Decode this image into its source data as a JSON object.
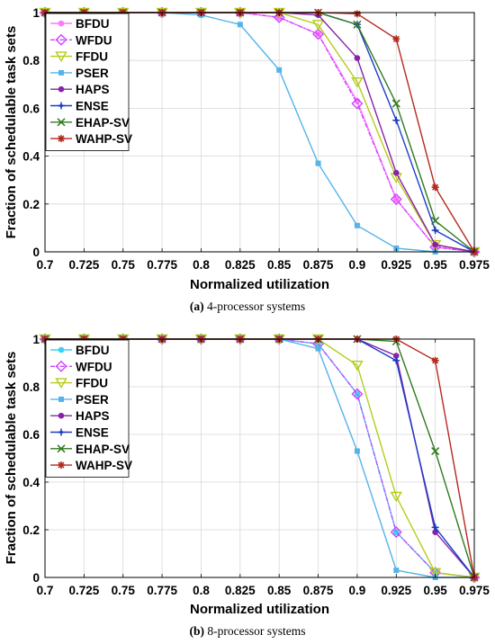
{
  "chart_data": [
    {
      "type": "line",
      "caption_label": "(a)",
      "caption_text": "4-processor systems",
      "xlabel": "Normalized utilization",
      "ylabel": "Fraction of schedulable task sets",
      "x": [
        0.7,
        0.725,
        0.75,
        0.775,
        0.8,
        0.825,
        0.85,
        0.875,
        0.9,
        0.925,
        0.95,
        0.975
      ],
      "x_tick_labels": [
        "0.7",
        "0.725",
        "0.75",
        "0.775",
        "0.8",
        "0.825",
        "0.85",
        "0.875",
        "0.9",
        "0.925",
        "0.95",
        "0.975"
      ],
      "y_tick_labels": [
        "0",
        "0.2",
        "0.4",
        "0.6",
        "0.8",
        "1"
      ],
      "xlim": [
        0.7,
        0.975
      ],
      "ylim": [
        0,
        1
      ],
      "grid": true,
      "legend_position": "top-left",
      "series": [
        {
          "name": "BFDU",
          "color": "#ff77ff",
          "marker": "dot",
          "dash": "solid",
          "values": [
            1,
            1,
            1,
            1,
            1,
            1,
            0.98,
            0.91,
            0.63,
            0.22,
            0.02,
            0.0
          ]
        },
        {
          "name": "WFDU",
          "color": "#cc44ff",
          "marker": "diamond",
          "dash": "dashdot",
          "values": [
            1,
            1,
            1,
            1,
            1,
            1,
            0.98,
            0.91,
            0.62,
            0.22,
            0.02,
            0.0
          ]
        },
        {
          "name": "FFDU",
          "color": "#b5cc18",
          "marker": "triangle-down",
          "dash": "solid",
          "values": [
            1,
            1,
            1,
            1,
            1,
            1,
            1.0,
            0.95,
            0.71,
            0.31,
            0.03,
            0.0
          ]
        },
        {
          "name": "PSER",
          "color": "#55b3ea",
          "marker": "square",
          "dash": "solid",
          "values": [
            1,
            1,
            1,
            1,
            0.99,
            0.95,
            0.76,
            0.37,
            0.11,
            0.015,
            0.0,
            0.0
          ]
        },
        {
          "name": "HAPS",
          "color": "#8822aa",
          "marker": "dot",
          "dash": "solid",
          "values": [
            1,
            1,
            1,
            1,
            1,
            1,
            1.0,
            0.99,
            0.81,
            0.33,
            0.03,
            0.0
          ]
        },
        {
          "name": "ENSE",
          "color": "#1a3cc8",
          "marker": "plus-dot",
          "dash": "solid",
          "values": [
            1,
            1,
            1,
            1,
            1,
            1,
            1.0,
            1.0,
            0.95,
            0.55,
            0.09,
            0.0
          ]
        },
        {
          "name": "EHAP-SV",
          "color": "#2f7a1e",
          "marker": "x",
          "dash": "solid",
          "values": [
            1,
            1,
            1,
            1,
            1,
            1,
            1.0,
            1.0,
            0.95,
            0.62,
            0.13,
            0.0
          ]
        },
        {
          "name": "WAHP-SV",
          "color": "#b5291e",
          "marker": "star",
          "dash": "solid",
          "values": [
            1,
            1,
            1,
            1,
            1,
            1,
            1.0,
            1.0,
            0.995,
            0.89,
            0.27,
            0.0
          ]
        }
      ]
    },
    {
      "type": "line",
      "caption_label": "(b)",
      "caption_text": "8-processor systems",
      "xlabel": "Normalized utilization",
      "ylabel": "Fraction of schedulable task sets",
      "x": [
        0.7,
        0.725,
        0.75,
        0.775,
        0.8,
        0.825,
        0.85,
        0.875,
        0.9,
        0.925,
        0.95,
        0.975
      ],
      "x_tick_labels": [
        "0.7",
        "0.725",
        "0.75",
        "0.775",
        "0.8",
        "0.825",
        "0.85",
        "0.875",
        "0.9",
        "0.925",
        "0.95",
        "0.975"
      ],
      "y_tick_labels": [
        "0",
        "0.2",
        "0.4",
        "0.6",
        "0.8",
        "1"
      ],
      "xlim": [
        0.7,
        0.975
      ],
      "ylim": [
        0,
        1
      ],
      "grid": true,
      "legend_position": "top-left",
      "series": [
        {
          "name": "BFDU",
          "color": "#3fd0f5",
          "marker": "dot",
          "dash": "solid",
          "values": [
            1,
            1,
            1,
            1,
            1,
            1,
            1.0,
            0.98,
            0.77,
            0.19,
            0.02,
            0.0
          ]
        },
        {
          "name": "WFDU",
          "color": "#cc44ff",
          "marker": "diamond",
          "dash": "dashdot",
          "values": [
            1,
            1,
            1,
            1,
            1,
            1,
            1.0,
            0.98,
            0.77,
            0.19,
            0.02,
            0.0
          ]
        },
        {
          "name": "FFDU",
          "color": "#b5cc18",
          "marker": "triangle-down",
          "dash": "solid",
          "values": [
            1,
            1,
            1,
            1,
            1,
            1,
            1.0,
            1.0,
            0.89,
            0.34,
            0.02,
            0.0
          ]
        },
        {
          "name": "PSER",
          "color": "#55b3ea",
          "marker": "square",
          "dash": "solid",
          "values": [
            1,
            1,
            1,
            1,
            1,
            1,
            1.0,
            0.96,
            0.53,
            0.03,
            0.0,
            0.0
          ]
        },
        {
          "name": "HAPS",
          "color": "#8822aa",
          "marker": "dot",
          "dash": "solid",
          "values": [
            1,
            1,
            1,
            1,
            1,
            1,
            1.0,
            1.0,
            1.0,
            0.93,
            0.19,
            0.0
          ]
        },
        {
          "name": "ENSE",
          "color": "#1a3cc8",
          "marker": "plus-dot",
          "dash": "solid",
          "values": [
            1,
            1,
            1,
            1,
            1,
            1,
            1.0,
            1.0,
            1.0,
            0.91,
            0.21,
            0.0
          ]
        },
        {
          "name": "EHAP-SV",
          "color": "#2f7a1e",
          "marker": "x",
          "dash": "solid",
          "values": [
            1,
            1,
            1,
            1,
            1,
            1,
            1.0,
            1.0,
            1.0,
            0.99,
            0.53,
            0.0
          ]
        },
        {
          "name": "WAHP-SV",
          "color": "#b5291e",
          "marker": "star",
          "dash": "solid",
          "values": [
            1,
            1,
            1,
            1,
            1,
            1,
            1.0,
            1.0,
            1.0,
            1.0,
            0.91,
            0.0
          ]
        }
      ]
    }
  ]
}
